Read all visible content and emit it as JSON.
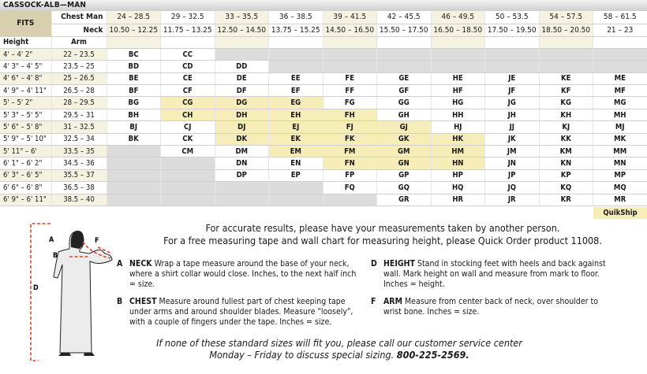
{
  "title": "CASSOCK-ALB—MAN",
  "table": {
    "fits_label": "FITS",
    "chest_label": "Chest Man",
    "neck_label": "Neck",
    "height_label": "Height",
    "arm_label": "Arm",
    "chest": [
      "24 – 28.5",
      "29 – 32.5",
      "33 – 35.5",
      "36 – 38.5",
      "39 – 41.5",
      "42 – 45.5",
      "46 – 49.5",
      "50 – 53.5",
      "54 – 57.5",
      "58 – 61.5"
    ],
    "neck": [
      "10.50 – 12.25",
      "11.75 – 13.25",
      "12.50 – 14.50",
      "13.75 – 15.25",
      "14.50 – 16.50",
      "15.50 – 17.50",
      "16.50 – 18.50",
      "17.50 – 19.50",
      "18.50 – 20.50",
      "21 – 23"
    ],
    "rows": [
      {
        "height": "4' – 4' 2\"",
        "arm": "22 – 23.5",
        "cells": [
          "BC",
          "CC",
          null,
          null,
          null,
          null,
          null,
          null,
          null,
          null
        ]
      },
      {
        "height": "4' 3\" – 4' 5\"",
        "arm": "23.5 – 25",
        "cells": [
          "BD",
          "CD",
          "DD",
          null,
          null,
          null,
          null,
          null,
          null,
          null
        ]
      },
      {
        "height": "4' 6\" – 4' 8\"",
        "arm": "25 – 26.5",
        "cells": [
          "BE",
          "CE",
          "DE",
          "EE",
          "FE",
          "GE",
          "HE",
          "JE",
          "KE",
          "ME"
        ]
      },
      {
        "height": "4' 9\" – 4' 11\"",
        "arm": "26.5 – 28",
        "cells": [
          "BF",
          "CF",
          "DF",
          "EF",
          "FF",
          "GF",
          "HF",
          "JF",
          "KF",
          "MF"
        ]
      },
      {
        "height": "5' – 5' 2\"",
        "arm": "28 – 29.5",
        "cells": [
          "BG",
          "CG",
          "DG",
          "EG",
          "FG",
          "GG",
          "HG",
          "JG",
          "KG",
          "MG"
        ]
      },
      {
        "height": "5' 3\" – 5' 5\"",
        "arm": "29.5 – 31",
        "cells": [
          "BH",
          "CH",
          "DH",
          "EH",
          "FH",
          "GH",
          "HH",
          "JH",
          "KH",
          "MH"
        ]
      },
      {
        "height": "5' 6\" – 5' 8\"",
        "arm": "31 – 32.5",
        "cells": [
          "BJ",
          "CJ",
          "DJ",
          "EJ",
          "FJ",
          "GJ",
          "HJ",
          "JJ",
          "KJ",
          "MJ"
        ]
      },
      {
        "height": "5' 9\" – 5' 10\"",
        "arm": "32.5 – 34",
        "cells": [
          "BK",
          "CK",
          "DK",
          "EK",
          "FK",
          "GK",
          "HK",
          "JK",
          "KK",
          "MK"
        ]
      },
      {
        "height": "5' 11\" – 6'",
        "arm": "33.5 – 35",
        "cells": [
          null,
          "CM",
          "DM",
          "EM",
          "FM",
          "GM",
          "HM",
          "JM",
          "KM",
          "MM"
        ]
      },
      {
        "height": "6' 1\" – 6' 2\"",
        "arm": "34.5 – 36",
        "cells": [
          null,
          null,
          "DN",
          "EN",
          "FN",
          "GN",
          "HN",
          "JN",
          "KN",
          "MN"
        ]
      },
      {
        "height": "6' 3\" – 6' 5\"",
        "arm": "35.5 – 37",
        "cells": [
          null,
          null,
          "DP",
          "EP",
          "FP",
          "GP",
          "HP",
          "JP",
          "KP",
          "MP"
        ]
      },
      {
        "height": "6' 6\" – 6' 8\"",
        "arm": "36.5 – 38",
        "cells": [
          null,
          null,
          null,
          null,
          "FQ",
          "GQ",
          "HQ",
          "JQ",
          "KQ",
          "MQ"
        ]
      },
      {
        "height": "6' 9\" – 6' 11\"",
        "arm": "38.5 – 40",
        "cells": [
          null,
          null,
          null,
          null,
          null,
          "GR",
          "HR",
          "JR",
          "KR",
          "MR"
        ]
      }
    ],
    "quikship_cells": [
      "CG",
      "DG",
      "EG",
      "CH",
      "DH",
      "EH",
      "FH",
      "DJ",
      "EJ",
      "FJ",
      "GJ",
      "DK",
      "EK",
      "FK",
      "GK",
      "HK",
      "EM",
      "FM",
      "GM",
      "HM",
      "FN",
      "GN",
      "HN"
    ],
    "quikship_label": "QuikShip"
  },
  "colors": {
    "quikship": "#f7edb8",
    "beige": "#f6f2e1",
    "unavailable": "#dcdcdc",
    "fits": "#d7cfae",
    "measure_line": "#d9472b"
  },
  "intro": [
    "For accurate results, please have your measurements taken by another person.",
    "For a free measuring tape and wall chart for measuring height, please Quick Order product 11008."
  ],
  "figure_labels": {
    "a": "A",
    "b": "B",
    "d": "D",
    "f": "F"
  },
  "instructions": [
    {
      "letter": "A",
      "title": "NECK",
      "text": "Wrap a tape measure around the base of your neck, where a shirt collar would close. Inches, to the next half inch = size."
    },
    {
      "letter": "B",
      "title": "CHEST",
      "text": "Measure around fullest part of chest keeping tape under arms and around shoulder blades. Measure \"loosely\", with a couple of fingers under the tape. Inches = size."
    },
    {
      "letter": "D",
      "title": "HEIGHT",
      "text": "Stand in stocking feet with heels and back against wall. Mark height on wall and measure from mark to floor. Inches = height."
    },
    {
      "letter": "F",
      "title": "ARM",
      "text": "Measure from center back of neck, over shoulder to wrist bone. Inches = size."
    }
  ],
  "closing": {
    "line1": "If none of these standard sizes will fit you, please call our customer service center",
    "line2_prefix": "Monday – Friday to discuss special sizing. ",
    "phone": "800-225-2569."
  }
}
